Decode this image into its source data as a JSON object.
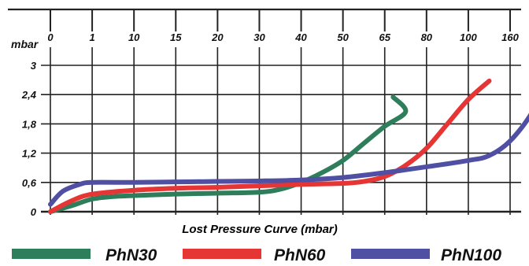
{
  "chart_data": {
    "type": "line",
    "title": "",
    "xlabel": "Lost Pressure Curve (mbar)",
    "ylabel": "mbar",
    "x_tick_labels": [
      "0",
      "1",
      "10",
      "15",
      "20",
      "30",
      "40",
      "50",
      "65",
      "80",
      "100",
      "160"
    ],
    "y_tick_labels": [
      "0",
      "0,6",
      "1,2",
      "1,8",
      "2,4",
      "3"
    ],
    "ylim": [
      0,
      3
    ],
    "grid": true,
    "legend_position": "bottom",
    "series": [
      {
        "name": "PhN30",
        "color": "#2e7d5b",
        "points": [
          [
            0,
            0
          ],
          [
            0.5,
            0.12
          ],
          [
            1,
            0.26
          ],
          [
            1.5,
            0.31
          ],
          [
            2,
            0.33
          ],
          [
            3,
            0.36
          ],
          [
            4,
            0.38
          ],
          [
            5,
            0.4
          ],
          [
            5.5,
            0.46
          ],
          [
            6,
            0.6
          ],
          [
            6.5,
            0.8
          ],
          [
            7,
            1.05
          ],
          [
            7.5,
            1.4
          ],
          [
            8,
            1.75
          ],
          [
            8.5,
            2.05
          ],
          [
            8.2,
            2.35
          ]
        ]
      },
      {
        "name": "PhN60",
        "color": "#e53535",
        "points": [
          [
            0,
            0
          ],
          [
            0.5,
            0.22
          ],
          [
            1,
            0.36
          ],
          [
            2,
            0.44
          ],
          [
            3,
            0.48
          ],
          [
            4,
            0.5
          ],
          [
            5,
            0.53
          ],
          [
            6,
            0.56
          ],
          [
            7,
            0.58
          ],
          [
            7.5,
            0.62
          ],
          [
            8,
            0.72
          ],
          [
            8.5,
            0.95
          ],
          [
            9,
            1.3
          ],
          [
            9.5,
            1.8
          ],
          [
            10,
            2.3
          ],
          [
            10.5,
            2.68
          ]
        ]
      },
      {
        "name": "PhN100",
        "color": "#4f4fa3",
        "points": [
          [
            0,
            0.15
          ],
          [
            0.3,
            0.42
          ],
          [
            0.7,
            0.56
          ],
          [
            1,
            0.6
          ],
          [
            2,
            0.6
          ],
          [
            3,
            0.61
          ],
          [
            4,
            0.62
          ],
          [
            5,
            0.63
          ],
          [
            6,
            0.65
          ],
          [
            7,
            0.7
          ],
          [
            8,
            0.8
          ],
          [
            9,
            0.92
          ],
          [
            10,
            1.05
          ],
          [
            10.5,
            1.15
          ],
          [
            11,
            1.45
          ],
          [
            11.5,
            2.0
          ],
          [
            11.8,
            2.58
          ]
        ]
      }
    ]
  },
  "legend": {
    "items": [
      {
        "label": "PhN30",
        "color": "#2e7d5b"
      },
      {
        "label": "PhN60",
        "color": "#e53535"
      },
      {
        "label": "PhN100",
        "color": "#4f4fa3"
      }
    ]
  }
}
